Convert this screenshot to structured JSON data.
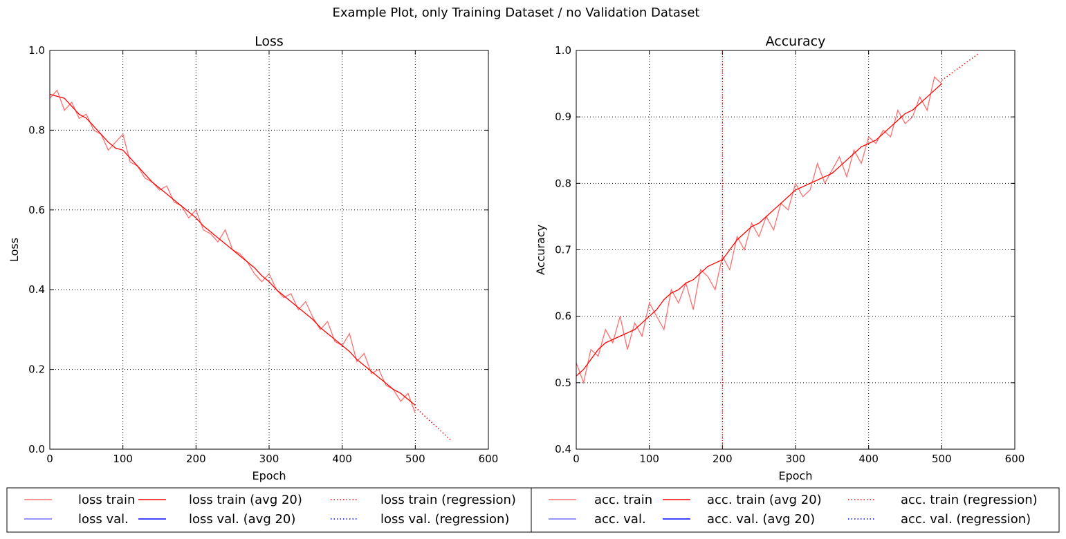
{
  "suptitle": "Example Plot, only Training Dataset / no Validation Dataset",
  "colors": {
    "train": "#ff0000",
    "train_raw": "#ff6e6e",
    "val": "#0000ff",
    "val_raw": "#7070ff",
    "grid": "#000000",
    "frame": "#000000"
  },
  "chart_data": [
    {
      "type": "line",
      "title": "Loss",
      "xlabel": "Epoch",
      "ylabel": "Loss",
      "xlim": [
        0,
        600
      ],
      "ylim": [
        0.0,
        1.0
      ],
      "xticks": [
        "0",
        "100",
        "200",
        "300",
        "400",
        "500",
        "600"
      ],
      "yticks": [
        "0.0",
        "0.2",
        "0.4",
        "0.6",
        "0.8",
        "1.0"
      ],
      "grid": true,
      "legend_position": "below-left",
      "vlines": [],
      "series": [
        {
          "name": "loss train",
          "style": "solid",
          "color": "#ff6e6e",
          "x": [
            0,
            10,
            20,
            30,
            40,
            50,
            60,
            70,
            80,
            90,
            100,
            110,
            120,
            130,
            140,
            150,
            160,
            170,
            180,
            190,
            200,
            210,
            220,
            230,
            240,
            250,
            260,
            270,
            280,
            290,
            300,
            310,
            320,
            330,
            340,
            350,
            360,
            370,
            380,
            390,
            400,
            410,
            420,
            430,
            440,
            450,
            460,
            470,
            480,
            490,
            500
          ],
          "y": [
            0.88,
            0.9,
            0.85,
            0.87,
            0.83,
            0.84,
            0.8,
            0.79,
            0.75,
            0.77,
            0.79,
            0.72,
            0.71,
            0.68,
            0.67,
            0.65,
            0.66,
            0.62,
            0.61,
            0.58,
            0.6,
            0.55,
            0.54,
            0.52,
            0.55,
            0.5,
            0.49,
            0.47,
            0.44,
            0.42,
            0.44,
            0.4,
            0.38,
            0.39,
            0.35,
            0.37,
            0.33,
            0.3,
            0.32,
            0.27,
            0.26,
            0.29,
            0.22,
            0.24,
            0.19,
            0.2,
            0.16,
            0.15,
            0.12,
            0.14,
            0.09
          ]
        },
        {
          "name": "loss val.",
          "style": "solid",
          "color": "#7070ff",
          "x": [],
          "y": []
        },
        {
          "name": "loss train (avg 20)",
          "style": "solid",
          "color": "#ff0000",
          "x": [
            0,
            10,
            20,
            30,
            40,
            50,
            60,
            70,
            80,
            90,
            100,
            110,
            120,
            130,
            140,
            150,
            160,
            170,
            180,
            190,
            200,
            210,
            220,
            230,
            240,
            250,
            260,
            270,
            280,
            290,
            300,
            310,
            320,
            330,
            340,
            350,
            360,
            370,
            380,
            390,
            400,
            410,
            420,
            430,
            440,
            450,
            460,
            470,
            480,
            490,
            500
          ],
          "y": [
            0.89,
            0.885,
            0.88,
            0.86,
            0.84,
            0.83,
            0.81,
            0.79,
            0.77,
            0.755,
            0.75,
            0.73,
            0.71,
            0.69,
            0.67,
            0.655,
            0.64,
            0.625,
            0.61,
            0.595,
            0.58,
            0.56,
            0.545,
            0.53,
            0.515,
            0.5,
            0.485,
            0.47,
            0.455,
            0.435,
            0.42,
            0.4,
            0.385,
            0.37,
            0.355,
            0.34,
            0.325,
            0.305,
            0.29,
            0.275,
            0.26,
            0.245,
            0.225,
            0.21,
            0.195,
            0.18,
            0.165,
            0.15,
            0.14,
            0.125,
            0.11
          ]
        },
        {
          "name": "loss val. (avg 20)",
          "style": "solid",
          "color": "#0000ff",
          "x": [],
          "y": []
        },
        {
          "name": "loss train (regression)",
          "style": "dotted",
          "color": "#ff0000",
          "x": [
            500,
            550
          ],
          "y": [
            0.105,
            0.02
          ]
        },
        {
          "name": "loss val. (regression)",
          "style": "dotted",
          "color": "#0000ff",
          "x": [],
          "y": []
        }
      ]
    },
    {
      "type": "line",
      "title": "Accuracy",
      "xlabel": "Epoch",
      "ylabel": "Accuracy",
      "xlim": [
        0,
        600
      ],
      "ylim": [
        0.4,
        1.0
      ],
      "xticks": [
        "0",
        "100",
        "200",
        "300",
        "400",
        "500",
        "600"
      ],
      "yticks": [
        "0.4",
        "0.5",
        "0.6",
        "0.7",
        "0.8",
        "0.9",
        "1.0"
      ],
      "grid": true,
      "legend_position": "below-right",
      "vlines": [
        200
      ],
      "series": [
        {
          "name": "acc. train",
          "style": "solid",
          "color": "#ff6e6e",
          "x": [
            0,
            10,
            20,
            30,
            40,
            50,
            60,
            70,
            80,
            90,
            100,
            110,
            120,
            130,
            140,
            150,
            160,
            170,
            180,
            190,
            200,
            210,
            220,
            230,
            240,
            250,
            260,
            270,
            280,
            290,
            300,
            310,
            320,
            330,
            340,
            350,
            360,
            370,
            380,
            390,
            400,
            410,
            420,
            430,
            440,
            450,
            460,
            470,
            480,
            490,
            500
          ],
          "y": [
            0.53,
            0.5,
            0.55,
            0.54,
            0.58,
            0.56,
            0.6,
            0.55,
            0.59,
            0.57,
            0.62,
            0.6,
            0.58,
            0.64,
            0.62,
            0.65,
            0.61,
            0.67,
            0.66,
            0.64,
            0.69,
            0.67,
            0.72,
            0.7,
            0.74,
            0.72,
            0.75,
            0.73,
            0.77,
            0.76,
            0.8,
            0.78,
            0.79,
            0.83,
            0.8,
            0.82,
            0.84,
            0.81,
            0.85,
            0.83,
            0.87,
            0.86,
            0.88,
            0.87,
            0.91,
            0.89,
            0.9,
            0.93,
            0.91,
            0.96,
            0.95
          ]
        },
        {
          "name": "acc. val.",
          "style": "solid",
          "color": "#7070ff",
          "x": [],
          "y": []
        },
        {
          "name": "acc. train (avg 20)",
          "style": "solid",
          "color": "#ff0000",
          "x": [
            0,
            10,
            20,
            30,
            40,
            50,
            60,
            70,
            80,
            90,
            100,
            110,
            120,
            130,
            140,
            150,
            160,
            170,
            180,
            190,
            200,
            210,
            220,
            230,
            240,
            250,
            260,
            270,
            280,
            290,
            300,
            310,
            320,
            330,
            340,
            350,
            360,
            370,
            380,
            390,
            400,
            410,
            420,
            430,
            440,
            450,
            460,
            470,
            480,
            490,
            500
          ],
          "y": [
            0.51,
            0.52,
            0.535,
            0.55,
            0.56,
            0.565,
            0.57,
            0.575,
            0.58,
            0.59,
            0.6,
            0.61,
            0.625,
            0.635,
            0.64,
            0.65,
            0.655,
            0.665,
            0.675,
            0.68,
            0.685,
            0.7,
            0.715,
            0.725,
            0.735,
            0.74,
            0.75,
            0.76,
            0.77,
            0.78,
            0.79,
            0.795,
            0.8,
            0.805,
            0.81,
            0.815,
            0.825,
            0.835,
            0.845,
            0.855,
            0.86,
            0.865,
            0.875,
            0.885,
            0.895,
            0.905,
            0.91,
            0.92,
            0.93,
            0.94,
            0.95
          ]
        },
        {
          "name": "acc. val. (avg 20)",
          "style": "solid",
          "color": "#0000ff",
          "x": [],
          "y": []
        },
        {
          "name": "acc. train (regression)",
          "style": "dotted",
          "color": "#ff0000",
          "x": [
            500,
            550
          ],
          "y": [
            0.955,
            0.995
          ]
        },
        {
          "name": "acc. val. (regression)",
          "style": "dotted",
          "color": "#0000ff",
          "x": [],
          "y": []
        }
      ]
    }
  ]
}
